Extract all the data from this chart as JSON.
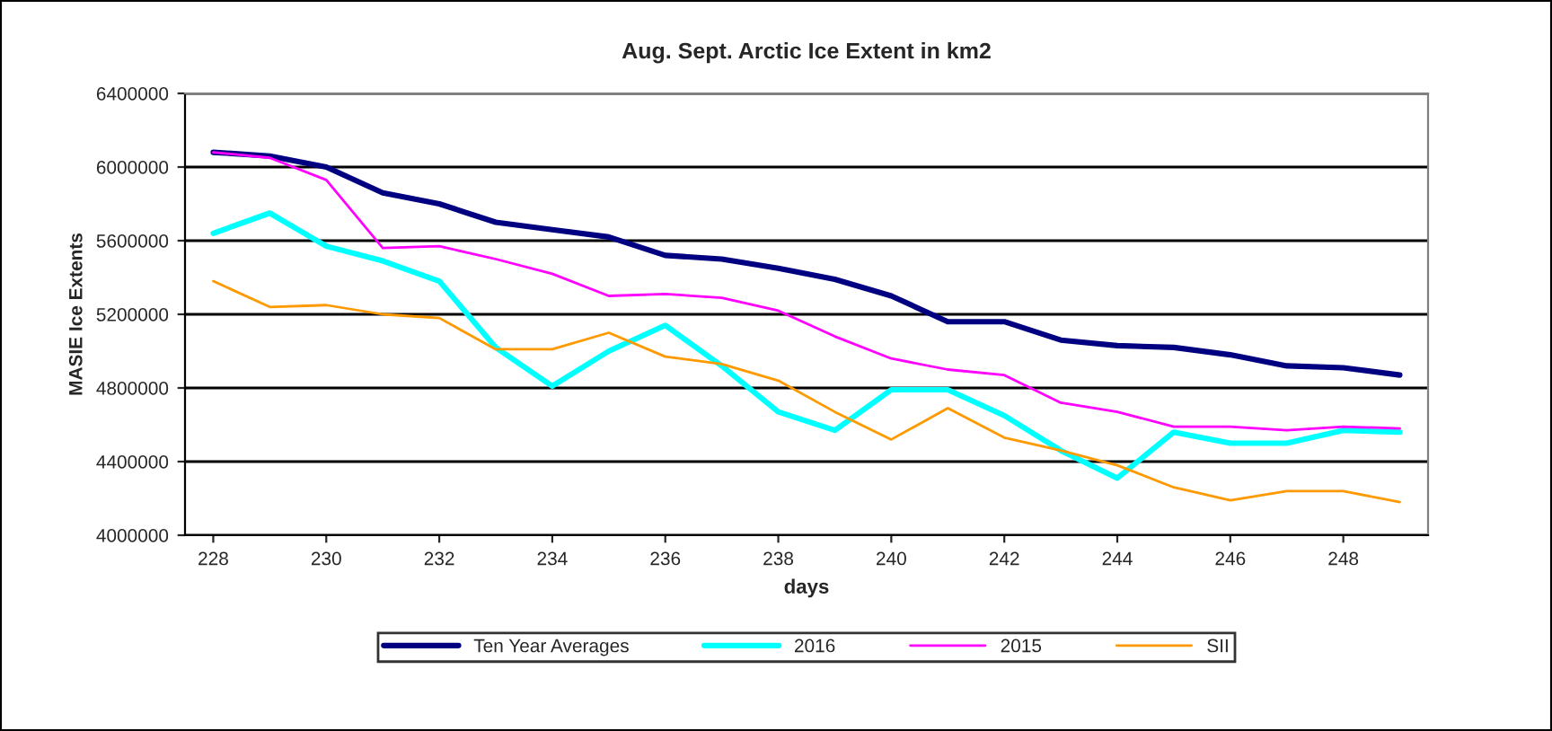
{
  "chart_data": {
    "type": "line",
    "title": "Aug. Sept. Arctic Ice Extent in km2",
    "xlabel": "days",
    "ylabel": "MASIE Ice Extents",
    "x": [
      228,
      229,
      230,
      231,
      232,
      233,
      234,
      235,
      236,
      237,
      238,
      239,
      240,
      241,
      242,
      243,
      244,
      245,
      246,
      247,
      248,
      249
    ],
    "series": [
      {
        "name": "Ten Year Averages",
        "color": "#000080",
        "values": [
          6080000,
          6060000,
          6000000,
          5860000,
          5800000,
          5700000,
          5660000,
          5620000,
          5520000,
          5500000,
          5450000,
          5390000,
          5300000,
          5160000,
          5160000,
          5060000,
          5030000,
          5020000,
          4980000,
          4920000,
          4910000,
          4870000
        ]
      },
      {
        "name": "2016",
        "color": "#00ffff",
        "values": [
          5640000,
          5750000,
          5570000,
          5490000,
          5380000,
          5020000,
          4810000,
          5000000,
          5140000,
          4920000,
          4670000,
          4570000,
          4790000,
          4790000,
          4650000,
          4460000,
          4310000,
          4560000,
          4500000,
          4500000,
          4570000,
          4560000
        ]
      },
      {
        "name": "2015",
        "color": "#ff00ff",
        "values": [
          6080000,
          6050000,
          5930000,
          5560000,
          5570000,
          5500000,
          5420000,
          5300000,
          5310000,
          5290000,
          5220000,
          5080000,
          4960000,
          4900000,
          4870000,
          4720000,
          4670000,
          4590000,
          4590000,
          4570000,
          4590000,
          4580000
        ]
      },
      {
        "name": "SII",
        "color": "#ff9900",
        "values": [
          5380000,
          5240000,
          5250000,
          5200000,
          5180000,
          5010000,
          5010000,
          5100000,
          4970000,
          4930000,
          4840000,
          4670000,
          4520000,
          4690000,
          4530000,
          4460000,
          4380000,
          4260000,
          4190000,
          4240000,
          4240000,
          4180000
        ]
      }
    ],
    "xlim": [
      227.5,
      249.5
    ],
    "xticks": [
      228,
      230,
      232,
      234,
      236,
      238,
      240,
      242,
      244,
      246,
      248
    ],
    "ylim": [
      4000000,
      6400000
    ],
    "yticks": [
      4000000,
      4400000,
      4800000,
      5200000,
      5600000,
      6000000,
      6400000
    ],
    "grid": "y",
    "legend": "bottom",
    "marker": "none",
    "line_style": "solid"
  }
}
